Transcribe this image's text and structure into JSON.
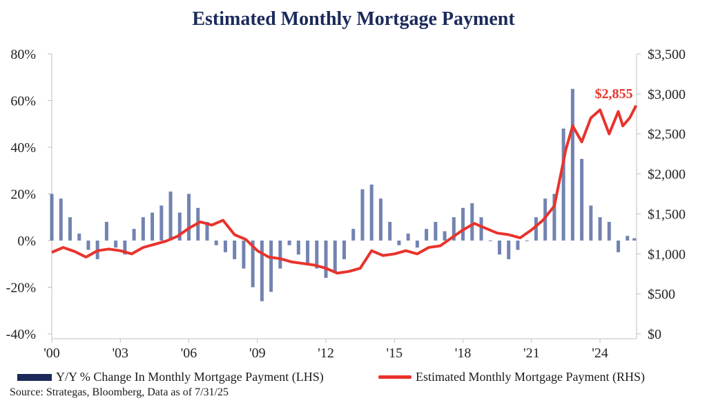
{
  "chart_data": {
    "type": "bar+line",
    "title": "Estimated Monthly Mortgage Payment",
    "x_tick_labels": [
      "'00",
      "'03",
      "'06",
      "'09",
      "'12",
      "'15",
      "'18",
      "'21",
      "'24"
    ],
    "x_tick_years": [
      2000,
      2003,
      2006,
      2009,
      2012,
      2015,
      2018,
      2021,
      2024
    ],
    "xlim": [
      2000,
      2025.6
    ],
    "y_left": {
      "ticks": [
        "80%",
        "60%",
        "40%",
        "20%",
        "0%",
        "-20%",
        "-40%"
      ],
      "range": [
        -40,
        80
      ]
    },
    "y_right": {
      "ticks": [
        "$3,500",
        "$3,000",
        "$2,500",
        "$2,000",
        "$1,500",
        "$1,000",
        "$500",
        "$0"
      ],
      "range": [
        0,
        3500
      ]
    },
    "grid": false,
    "legend_position": "bottom",
    "series": [
      {
        "name": "Y/Y % Change In Monthly Mortgage Payment (LHS)",
        "type": "bar",
        "axis": "left",
        "color": "#1b2a5a",
        "points": [
          [
            2000.0,
            20
          ],
          [
            2000.4,
            18
          ],
          [
            2000.8,
            10
          ],
          [
            2001.2,
            3
          ],
          [
            2001.6,
            -4
          ],
          [
            2002.0,
            -8
          ],
          [
            2002.4,
            8
          ],
          [
            2002.8,
            -3
          ],
          [
            2003.2,
            -6
          ],
          [
            2003.6,
            5
          ],
          [
            2004.0,
            10
          ],
          [
            2004.4,
            12
          ],
          [
            2004.8,
            15
          ],
          [
            2005.2,
            21
          ],
          [
            2005.6,
            12
          ],
          [
            2006.0,
            20
          ],
          [
            2006.4,
            14
          ],
          [
            2006.8,
            8
          ],
          [
            2007.2,
            -2
          ],
          [
            2007.6,
            -5
          ],
          [
            2008.0,
            -8
          ],
          [
            2008.4,
            -12
          ],
          [
            2008.8,
            -20
          ],
          [
            2009.2,
            -26
          ],
          [
            2009.6,
            -22
          ],
          [
            2010.0,
            -12
          ],
          [
            2010.4,
            -2
          ],
          [
            2010.8,
            -6
          ],
          [
            2011.2,
            -10
          ],
          [
            2011.6,
            -12
          ],
          [
            2012.0,
            -16
          ],
          [
            2012.4,
            -14
          ],
          [
            2012.8,
            -8
          ],
          [
            2013.2,
            5
          ],
          [
            2013.6,
            22
          ],
          [
            2014.0,
            24
          ],
          [
            2014.4,
            18
          ],
          [
            2014.8,
            8
          ],
          [
            2015.2,
            -2
          ],
          [
            2015.6,
            3
          ],
          [
            2016.0,
            -3
          ],
          [
            2016.4,
            5
          ],
          [
            2016.8,
            8
          ],
          [
            2017.2,
            4
          ],
          [
            2017.6,
            10
          ],
          [
            2018.0,
            14
          ],
          [
            2018.4,
            16
          ],
          [
            2018.8,
            10
          ],
          [
            2019.2,
            0
          ],
          [
            2019.6,
            -6
          ],
          [
            2020.0,
            -8
          ],
          [
            2020.4,
            -4
          ],
          [
            2020.8,
            0
          ],
          [
            2021.2,
            10
          ],
          [
            2021.6,
            18
          ],
          [
            2022.0,
            20
          ],
          [
            2022.4,
            48
          ],
          [
            2022.8,
            65
          ],
          [
            2023.2,
            35
          ],
          [
            2023.6,
            15
          ],
          [
            2024.0,
            10
          ],
          [
            2024.4,
            8
          ],
          [
            2024.8,
            -5
          ],
          [
            2025.2,
            2
          ],
          [
            2025.5,
            1
          ]
        ]
      },
      {
        "name": "Estimated Monthly Mortgage Payment (RHS)",
        "type": "line",
        "axis": "right",
        "color": "#e8332c",
        "points": [
          [
            2000.0,
            1020
          ],
          [
            2000.5,
            1080
          ],
          [
            2001.0,
            1030
          ],
          [
            2001.5,
            960
          ],
          [
            2002.0,
            1040
          ],
          [
            2002.5,
            1060
          ],
          [
            2003.0,
            1040
          ],
          [
            2003.5,
            1000
          ],
          [
            2004.0,
            1080
          ],
          [
            2004.5,
            1120
          ],
          [
            2005.0,
            1160
          ],
          [
            2005.5,
            1220
          ],
          [
            2006.0,
            1320
          ],
          [
            2006.5,
            1400
          ],
          [
            2007.0,
            1360
          ],
          [
            2007.5,
            1420
          ],
          [
            2008.0,
            1240
          ],
          [
            2008.5,
            1180
          ],
          [
            2009.0,
            1040
          ],
          [
            2009.5,
            960
          ],
          [
            2010.0,
            940
          ],
          [
            2010.5,
            900
          ],
          [
            2011.0,
            880
          ],
          [
            2011.5,
            860
          ],
          [
            2012.0,
            820
          ],
          [
            2012.5,
            760
          ],
          [
            2013.0,
            780
          ],
          [
            2013.5,
            820
          ],
          [
            2014.0,
            1040
          ],
          [
            2014.5,
            980
          ],
          [
            2015.0,
            1000
          ],
          [
            2015.5,
            1040
          ],
          [
            2016.0,
            1000
          ],
          [
            2016.5,
            1080
          ],
          [
            2017.0,
            1100
          ],
          [
            2017.5,
            1200
          ],
          [
            2018.0,
            1300
          ],
          [
            2018.5,
            1380
          ],
          [
            2019.0,
            1320
          ],
          [
            2019.5,
            1260
          ],
          [
            2020.0,
            1240
          ],
          [
            2020.5,
            1200
          ],
          [
            2021.0,
            1300
          ],
          [
            2021.5,
            1420
          ],
          [
            2022.0,
            1600
          ],
          [
            2022.5,
            2300
          ],
          [
            2022.8,
            2600
          ],
          [
            2023.2,
            2400
          ],
          [
            2023.6,
            2700
          ],
          [
            2024.0,
            2800
          ],
          [
            2024.4,
            2500
          ],
          [
            2024.8,
            2780
          ],
          [
            2025.0,
            2600
          ],
          [
            2025.3,
            2700
          ],
          [
            2025.58,
            2855
          ]
        ]
      }
    ],
    "annotation": "$2,855"
  },
  "legend": {
    "bar_label": "Y/Y % Change In Monthly Mortgage Payment (LHS)",
    "line_label": "Estimated Monthly Mortgage Payment (RHS)"
  },
  "source": "Source: Strategas, Bloomberg, Data as of 7/31/25"
}
